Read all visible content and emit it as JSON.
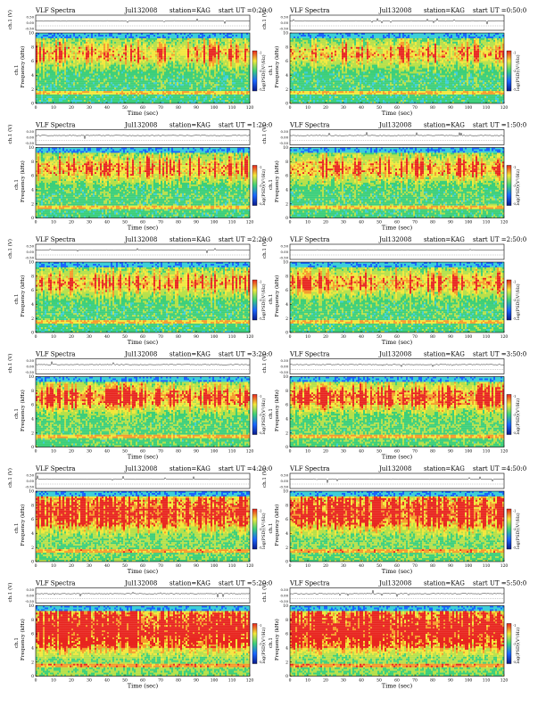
{
  "chart_data": [
    {
      "type": "heatmap",
      "title": "VLF Spectra",
      "date": "Jul132008",
      "station": "station=KAG",
      "start": "start UT =0:20:0",
      "ylabel": "Frequency (kHz)",
      "ch_label": "ch.1",
      "top_ylabel": "ch.1 (V)",
      "xlabel": "Time (sec)",
      "colorbar_label": "log(PSD)(V²/Hz)",
      "xlim": [
        0,
        120
      ],
      "ylim": [
        0,
        10
      ],
      "xticks": [
        0,
        10,
        20,
        30,
        40,
        50,
        60,
        70,
        80,
        90,
        100,
        110,
        120
      ],
      "yticks": [
        0,
        2,
        4,
        6,
        8,
        10
      ],
      "top_yticks": [
        "0.50",
        "0.00",
        "-0.50"
      ],
      "colorbar_ticks": [
        "-1",
        "-3",
        "-5"
      ],
      "activity_level": 0.35,
      "band_khz": [
        6,
        8
      ]
    },
    {
      "type": "heatmap",
      "title": "VLF Spectra",
      "date": "Jul132008",
      "station": "station=KAG",
      "start": "start UT =0:50:0",
      "ylabel": "Frequency (kHz)",
      "ch_label": "ch.1",
      "top_ylabel": "ch.1 (V)",
      "xlabel": "Time (sec)",
      "colorbar_label": "log(PSD)(V²/Hz)",
      "xlim": [
        0,
        120
      ],
      "ylim": [
        0,
        10
      ],
      "xticks": [
        0,
        10,
        20,
        30,
        40,
        50,
        60,
        70,
        80,
        90,
        100,
        110,
        120
      ],
      "yticks": [
        0,
        2,
        4,
        6,
        8,
        10
      ],
      "top_yticks": [
        "0.50",
        "0.00",
        "-0.50"
      ],
      "colorbar_ticks": [
        "-1",
        "-3",
        "-5"
      ],
      "activity_level": 0.35,
      "band_khz": [
        6,
        8
      ]
    },
    {
      "type": "heatmap",
      "title": "VLF Spectra",
      "date": "Jul132008",
      "station": "station=KAG",
      "start": "start UT =1:20:0",
      "ylabel": "Frequency (kHz)",
      "ch_label": "ch.1",
      "top_ylabel": "ch.1 (V)",
      "xlabel": "Time (sec)",
      "colorbar_label": "log(PSD)(V²/Hz)",
      "xlim": [
        0,
        120
      ],
      "ylim": [
        0,
        10
      ],
      "xticks": [
        0,
        10,
        20,
        30,
        40,
        50,
        60,
        70,
        80,
        90,
        100,
        110,
        120
      ],
      "yticks": [
        0,
        2,
        4,
        6,
        8,
        10
      ],
      "top_yticks": [
        "0.50",
        "0.00",
        "-0.50"
      ],
      "colorbar_ticks": [
        "-1",
        "-3",
        "-5"
      ],
      "activity_level": 0.4,
      "band_khz": [
        6,
        8
      ]
    },
    {
      "type": "heatmap",
      "title": "VLF Spectra",
      "date": "Jul132008",
      "station": "station=KAG",
      "start": "start UT =1:50:0",
      "ylabel": "Frequency (kHz)",
      "ch_label": "ch.1",
      "top_ylabel": "ch.1 (V)",
      "xlabel": "Time (sec)",
      "colorbar_label": "log(PSD)(V²/Hz)",
      "xlim": [
        0,
        120
      ],
      "ylim": [
        0,
        10
      ],
      "xticks": [
        0,
        10,
        20,
        30,
        40,
        50,
        60,
        70,
        80,
        90,
        100,
        110,
        120
      ],
      "yticks": [
        0,
        2,
        4,
        6,
        8,
        10
      ],
      "top_yticks": [
        "0.50",
        "0.00",
        "-0.50"
      ],
      "colorbar_ticks": [
        "-1",
        "-3",
        "-5"
      ],
      "activity_level": 0.45,
      "band_khz": [
        6,
        8
      ]
    },
    {
      "type": "heatmap",
      "title": "VLF Spectra",
      "date": "Jul132008",
      "station": "station=KAG",
      "start": "start UT =2:20:0",
      "ylabel": "Frequency (kHz)",
      "ch_label": "ch.1",
      "top_ylabel": "ch.1 (V)",
      "xlabel": "Time (sec)",
      "colorbar_label": "log(PSD)(V²/Hz)",
      "xlim": [
        0,
        120
      ],
      "ylim": [
        0,
        10
      ],
      "xticks": [
        0,
        10,
        20,
        30,
        40,
        50,
        60,
        70,
        80,
        90,
        100,
        110,
        120
      ],
      "yticks": [
        0,
        2,
        4,
        6,
        8,
        10
      ],
      "top_yticks": [
        "0.50",
        "0.00",
        "-0.50"
      ],
      "colorbar_ticks": [
        "-1",
        "-3",
        "-5"
      ],
      "activity_level": 0.4,
      "band_khz": [
        6,
        8
      ]
    },
    {
      "type": "heatmap",
      "title": "VLF Spectra",
      "date": "Jul132008",
      "station": "station=KAG",
      "start": "start UT =2:50:0",
      "ylabel": "Frequency (kHz)",
      "ch_label": "ch.1",
      "top_ylabel": "ch.1 (V)",
      "xlabel": "Time (sec)",
      "colorbar_label": "log(PSD)(V²/Hz)",
      "xlim": [
        0,
        120
      ],
      "ylim": [
        0,
        10
      ],
      "xticks": [
        0,
        10,
        20,
        30,
        40,
        50,
        60,
        70,
        80,
        90,
        100,
        110,
        120
      ],
      "yticks": [
        0,
        2,
        4,
        6,
        8,
        10
      ],
      "top_yticks": [
        "0.50",
        "0.00",
        "-0.50"
      ],
      "colorbar_ticks": [
        "-1",
        "-3",
        "-5"
      ],
      "activity_level": 0.45,
      "band_khz": [
        6,
        8
      ]
    },
    {
      "type": "heatmap",
      "title": "VLF Spectra",
      "date": "Jul132008",
      "station": "station=KAG",
      "start": "start UT =3:20:0",
      "ylabel": "Frequency (kHz)",
      "ch_label": "ch.1",
      "top_ylabel": "ch.1 (V)",
      "xlabel": "Time (sec)",
      "colorbar_label": "log(PSD)(V²/Hz)",
      "xlim": [
        0,
        120
      ],
      "ylim": [
        0,
        10
      ],
      "xticks": [
        0,
        10,
        20,
        30,
        40,
        50,
        60,
        70,
        80,
        90,
        100,
        110,
        120
      ],
      "yticks": [
        0,
        2,
        4,
        6,
        8,
        10
      ],
      "top_yticks": [
        "0.50",
        "0.00",
        "-0.50"
      ],
      "colorbar_ticks": [
        "-1",
        "-3",
        "-5"
      ],
      "activity_level": 0.55,
      "band_khz": [
        6,
        8
      ]
    },
    {
      "type": "heatmap",
      "title": "VLF Spectra",
      "date": "Jul132008",
      "station": "station=KAG",
      "start": "start UT =3:50:0",
      "ylabel": "Frequency (kHz)",
      "ch_label": "ch.1",
      "top_ylabel": "ch.1 (V)",
      "xlabel": "Time (sec)",
      "colorbar_label": "log(PSD)(V²/Hz)",
      "xlim": [
        0,
        120
      ],
      "ylim": [
        0,
        10
      ],
      "xticks": [
        0,
        10,
        20,
        30,
        40,
        50,
        60,
        70,
        80,
        90,
        100,
        110,
        120
      ],
      "yticks": [
        0,
        2,
        4,
        6,
        8,
        10
      ],
      "top_yticks": [
        "0.50",
        "0.00",
        "-0.50"
      ],
      "colorbar_ticks": [
        "-1",
        "-3",
        "-5"
      ],
      "activity_level": 0.6,
      "band_khz": [
        6,
        8
      ]
    },
    {
      "type": "heatmap",
      "title": "VLF Spectra",
      "date": "Jul132008",
      "station": "station=KAG",
      "start": "start UT =4:20:0",
      "ylabel": "Frequency (kHz)",
      "ch_label": "ch.1",
      "top_ylabel": "ch.1 (V)",
      "xlabel": "Time (sec)",
      "colorbar_label": "log(PSD)(V²/Hz)",
      "xlim": [
        0,
        120
      ],
      "ylim": [
        0,
        10
      ],
      "xticks": [
        0,
        10,
        20,
        30,
        40,
        50,
        60,
        70,
        80,
        90,
        100,
        110,
        120
      ],
      "yticks": [
        0,
        2,
        4,
        6,
        8,
        10
      ],
      "top_yticks": [
        "0.50",
        "0.00",
        "-0.50"
      ],
      "colorbar_ticks": [
        "-1",
        "-3",
        "-5"
      ],
      "activity_level": 0.75,
      "band_khz": [
        5,
        9
      ]
    },
    {
      "type": "heatmap",
      "title": "VLF Spectra",
      "date": "Jul132008",
      "station": "station=KAG",
      "start": "start UT =4:50:0",
      "ylabel": "Frequency (kHz)",
      "ch_label": "ch.1",
      "top_ylabel": "ch.1 (V)",
      "xlabel": "Time (sec)",
      "colorbar_label": "log(PSD)(V²/Hz)",
      "xlim": [
        0,
        120
      ],
      "ylim": [
        0,
        10
      ],
      "xticks": [
        0,
        10,
        20,
        30,
        40,
        50,
        60,
        70,
        80,
        90,
        100,
        110,
        120
      ],
      "yticks": [
        0,
        2,
        4,
        6,
        8,
        10
      ],
      "top_yticks": [
        "0.50",
        "0.00",
        "-0.50"
      ],
      "colorbar_ticks": [
        "-1",
        "-3",
        "-5"
      ],
      "activity_level": 0.75,
      "band_khz": [
        5,
        9
      ]
    },
    {
      "type": "heatmap",
      "title": "VLF Spectra",
      "date": "Jul132008",
      "station": "station=KAG",
      "start": "start UT =5:20:0",
      "ylabel": "Frequency (kHz)",
      "ch_label": "ch.1",
      "top_ylabel": "ch.1 (V)",
      "xlabel": "Time (sec)",
      "colorbar_label": "log(PSD)(V²/Hz)",
      "xlim": [
        0,
        120
      ],
      "ylim": [
        0,
        10
      ],
      "xticks": [
        0,
        10,
        20,
        30,
        40,
        50,
        60,
        70,
        80,
        90,
        100,
        110,
        120
      ],
      "yticks": [
        0,
        2,
        4,
        6,
        8,
        10
      ],
      "top_yticks": [
        "0.50",
        "0.00",
        "-0.50"
      ],
      "colorbar_ticks": [
        "-1",
        "-3",
        "-5"
      ],
      "activity_level": 0.88,
      "band_khz": [
        4,
        9
      ]
    },
    {
      "type": "heatmap",
      "title": "VLF Spectra",
      "date": "Jul132008",
      "station": "station=KAG",
      "start": "start UT =5:50:0",
      "ylabel": "Frequency (kHz)",
      "ch_label": "ch.1",
      "top_ylabel": "ch.1 (V)",
      "xlabel": "Time (sec)",
      "colorbar_label": "log(PSD)(V²/Hz)",
      "xlim": [
        0,
        120
      ],
      "ylim": [
        0,
        10
      ],
      "xticks": [
        0,
        10,
        20,
        30,
        40,
        50,
        60,
        70,
        80,
        90,
        100,
        110,
        120
      ],
      "yticks": [
        0,
        2,
        4,
        6,
        8,
        10
      ],
      "top_yticks": [
        "0.50",
        "0.00",
        "-0.50"
      ],
      "colorbar_ticks": [
        "-1",
        "-3",
        "-5"
      ],
      "activity_level": 0.88,
      "band_khz": [
        4,
        9
      ]
    }
  ],
  "colors": {
    "background_low": "#1a66ff",
    "mid": "#3ccf7a",
    "high": "#f2e83c",
    "peak": "#e8251f"
  }
}
